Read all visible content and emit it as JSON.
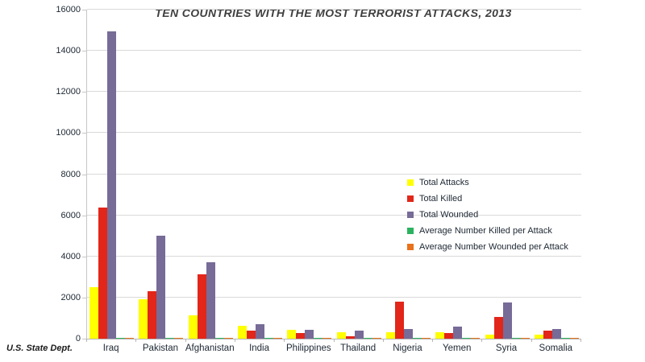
{
  "title": "TEN COUNTRIES WITH THE MOST TERRORIST ATTACKS, 2013",
  "source": "U.S. State Dept.",
  "colors": {
    "total_attacks": "#FFFF00",
    "total_killed": "#E2261A",
    "total_wounded": "#776B97",
    "avg_killed_per_attack": "#2CB25F",
    "avg_wounded_per_attack": "#E8711B",
    "gridline": "#D9D9D9",
    "axis": "#B5B5B5",
    "title_text": "#3F3F3F",
    "tick_text": "#1D2733"
  },
  "y_axis": {
    "tick_labels": [
      "0",
      "2000",
      "4000",
      "6000",
      "8000",
      "10000",
      "12000",
      "14000",
      "16000"
    ]
  },
  "chart_data": {
    "type": "bar",
    "title": "TEN COUNTRIES WITH THE MOST TERRORIST ATTACKS, 2013",
    "xlabel": "",
    "ylabel": "",
    "ylim": [
      0,
      16000
    ],
    "y_tick_step": 2000,
    "grid": true,
    "legend_position": "right-inside",
    "categories": [
      "Iraq",
      "Pakistan",
      "Afghanistan",
      "India",
      "Philippines",
      "Thailand",
      "Nigeria",
      "Yemen",
      "Syria",
      "Somalia"
    ],
    "series": [
      {
        "name": "Total Attacks",
        "color": "#FFFF00",
        "values": [
          2495,
          1920,
          1144,
          622,
          450,
          332,
          300,
          295,
          212,
          195
        ]
      },
      {
        "name": "Total Killed",
        "color": "#E2261A",
        "values": [
          6378,
          2315,
          3111,
          405,
          279,
          131,
          1817,
          291,
          1074,
          408
        ]
      },
      {
        "name": "Total Wounded",
        "color": "#776B97",
        "values": [
          14956,
          4989,
          3717,
          717,
          413,
          398,
          457,
          583,
          1773,
          485
        ]
      },
      {
        "name": "Average Number Killed per Attack",
        "color": "#2CB25F",
        "values": [
          2.56,
          1.21,
          2.72,
          0.65,
          0.62,
          0.39,
          6.06,
          0.99,
          5.07,
          2.09
        ]
      },
      {
        "name": "Average Number Wounded per Attack",
        "color": "#E8711B",
        "values": [
          5.99,
          2.6,
          3.25,
          1.15,
          0.92,
          1.2,
          1.52,
          1.98,
          8.36,
          2.49
        ]
      }
    ]
  }
}
